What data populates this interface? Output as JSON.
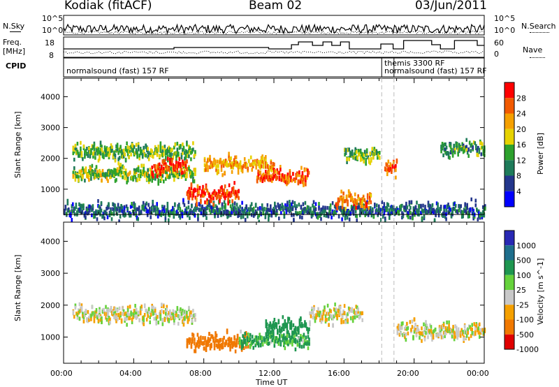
{
  "header": {
    "station": "Kodiak (fitACF)",
    "beam": "Beam 02",
    "date": "03/Jun/2011"
  },
  "noise_panel": {
    "left_label": "N.Sky",
    "right_label": "N.Search",
    "left_ticks": [
      "10^5",
      "10^0"
    ],
    "right_ticks": [
      "10^5",
      "10^0"
    ]
  },
  "freq_panel": {
    "left_label_1": "Freq.",
    "left_label_2": "[MHz]",
    "right_label": "Nave",
    "left_ticks": [
      "18",
      "8"
    ],
    "right_ticks": [
      "60",
      "0"
    ]
  },
  "cpid_panel": {
    "label": "CPID",
    "modes": [
      {
        "text": "normalsound (fast) 157 RF",
        "start": "00:00",
        "end": "18:10"
      },
      {
        "text": "themis 3300 RF",
        "start": "18:10",
        "end": "18:50"
      },
      {
        "text": "normalsound (fast) 157 RF",
        "start": "18:50",
        "end": "24:00"
      }
    ]
  },
  "power_panel": {
    "ylabel": "Slant Range [km]",
    "colorbar_label": "Power [dB]",
    "colorbar_ticks": [
      "28",
      "24",
      "20",
      "16",
      "12",
      "8",
      "4"
    ],
    "colors": [
      "#ff0000",
      "#f25a00",
      "#f5a000",
      "#e6d200",
      "#2da12d",
      "#1e7b5a",
      "#23368c",
      "#0000ff"
    ]
  },
  "velocity_panel": {
    "ylabel": "Slant Range [km]",
    "colorbar_label": "Velocity [m s^-1]",
    "colorbar_ticks": [
      "1000",
      "500",
      "100",
      "25",
      "-25",
      "-100",
      "-500",
      "-1000"
    ],
    "colors": [
      "#2828b4",
      "#1e6e8c",
      "#1e9650",
      "#66d23c",
      "#c8c8c8",
      "#f5a000",
      "#f07800",
      "#e00000"
    ]
  },
  "xaxis": {
    "label": "Time UT",
    "ticks": [
      "00:00",
      "04:00",
      "08:00",
      "12:00",
      "16:00",
      "20:00",
      "00:00"
    ]
  },
  "chart_data": {
    "type": "heatmap",
    "title": "Kodiak (fitACF)  Beam 02  03/Jun/2011",
    "xlabel": "Time UT",
    "ylabel": "Slant Range [km]",
    "xlim": [
      "00:00",
      "24:00"
    ],
    "ylim": [
      180,
      4600
    ],
    "y_ticks": [
      1000,
      2000,
      3000,
      4000
    ],
    "grid": false,
    "panels": [
      {
        "name": "Power",
        "unit": "dB",
        "clim": [
          0,
          30
        ],
        "echo_bands": [
          {
            "t_start": 0.0,
            "t_end": 24.0,
            "range_km": 300,
            "value_db": 6
          },
          {
            "t_start": 0.5,
            "t_end": 7.5,
            "range_km": 1500,
            "value_db": 14
          },
          {
            "t_start": 0.5,
            "t_end": 7.5,
            "range_km": 2200,
            "value_db": 12
          },
          {
            "t_start": 5.0,
            "t_end": 7.0,
            "range_km": 1750,
            "value_db": 26
          },
          {
            "t_start": 7.0,
            "t_end": 10.0,
            "range_km": 850,
            "value_db": 26
          },
          {
            "t_start": 8.0,
            "t_end": 12.0,
            "range_km": 1800,
            "value_db": 20
          },
          {
            "t_start": 11.0,
            "t_end": 14.0,
            "range_km": 1400,
            "value_db": 24
          },
          {
            "t_start": 15.5,
            "t_end": 17.5,
            "range_km": 650,
            "value_db": 22
          },
          {
            "t_start": 16.0,
            "t_end": 18.0,
            "range_km": 2100,
            "value_db": 12
          },
          {
            "t_start": 18.3,
            "t_end": 19.0,
            "range_km": 1700,
            "value_db": 24
          },
          {
            "t_start": 21.5,
            "t_end": 24.0,
            "range_km": 2300,
            "value_db": 10
          }
        ]
      },
      {
        "name": "Velocity",
        "unit": "m s^-1",
        "clim": [
          -1000,
          1000
        ],
        "echo_bands": [
          {
            "t_start": 0.5,
            "t_end": 7.5,
            "range_km": 1700,
            "value_ms": 0
          },
          {
            "t_start": 7.0,
            "t_end": 10.5,
            "range_km": 850,
            "value_ms": -300
          },
          {
            "t_start": 10.0,
            "t_end": 14.0,
            "range_km": 900,
            "value_ms": 80
          },
          {
            "t_start": 11.5,
            "t_end": 14.0,
            "range_km": 1300,
            "value_ms": 200
          },
          {
            "t_start": 14.0,
            "t_end": 17.0,
            "range_km": 1700,
            "value_ms": 0
          },
          {
            "t_start": 19.0,
            "t_end": 24.0,
            "range_km": 1200,
            "value_ms": 0
          }
        ]
      }
    ]
  }
}
